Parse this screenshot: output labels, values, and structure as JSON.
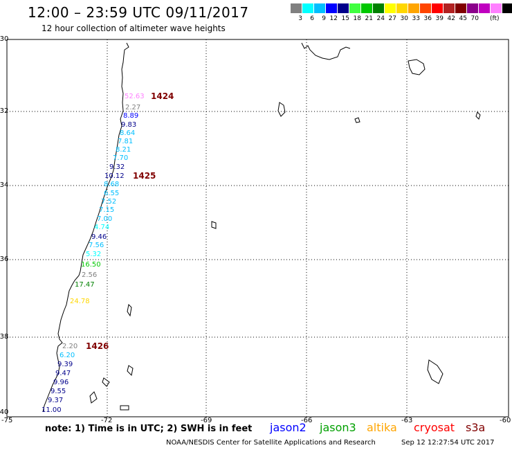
{
  "header": {
    "title": "12:00 – 23:59 UTC 09/11/2017",
    "subtitle": "12 hour collection of altimeter wave heights"
  },
  "legend": {
    "colors": [
      "#808080",
      "#00ffff",
      "#00bfff",
      "#0000ff",
      "#00008b",
      "#40ff40",
      "#00c800",
      "#008000",
      "#ffff00",
      "#ffd700",
      "#ffa500",
      "#ff4500",
      "#ff0000",
      "#b22222",
      "#800000",
      "#8b008b",
      "#c000c0",
      "#ff80ff",
      "#000000"
    ],
    "labels": [
      "3",
      "6",
      "9",
      "12",
      "15",
      "18",
      "21",
      "24",
      "27",
      "30",
      "33",
      "36",
      "39",
      "42",
      "45",
      "70"
    ],
    "unit": "(ft)"
  },
  "axes": {
    "lat_labels": [
      "-30",
      "-32",
      "-34",
      "-36",
      "-38",
      "-40"
    ],
    "lon_labels": [
      "-75",
      "-72",
      "-69",
      "-66",
      "-63",
      "-60"
    ]
  },
  "passes": [
    "1424",
    "1425",
    "1426"
  ],
  "wave_heights": [
    {
      "v": "52.63",
      "c": "#ff80ff"
    },
    {
      "v": "2.27",
      "c": "#808080"
    },
    {
      "v": "8.89",
      "c": "#0000ff"
    },
    {
      "v": "9.83",
      "c": "#00008b"
    },
    {
      "v": "8.64",
      "c": "#00bfff"
    },
    {
      "v": "7.81",
      "c": "#00bfff"
    },
    {
      "v": "8.21",
      "c": "#00bfff"
    },
    {
      "v": "7.70",
      "c": "#00bfff"
    },
    {
      "v": "9.32",
      "c": "#00008b"
    },
    {
      "v": "10.12",
      "c": "#00008b"
    },
    {
      "v": "8.68",
      "c": "#00bfff"
    },
    {
      "v": "6.55",
      "c": "#00bfff"
    },
    {
      "v": "7.52",
      "c": "#00bfff"
    },
    {
      "v": "7.15",
      "c": "#00bfff"
    },
    {
      "v": "7.00",
      "c": "#00bfff"
    },
    {
      "v": "4.74",
      "c": "#00ffff"
    },
    {
      "v": "9.46",
      "c": "#00008b"
    },
    {
      "v": "7.56",
      "c": "#00bfff"
    },
    {
      "v": "5.32",
      "c": "#00ffff"
    },
    {
      "v": "16.50",
      "c": "#00c800"
    },
    {
      "v": "2.56",
      "c": "#808080"
    },
    {
      "v": "17.47",
      "c": "#008000"
    },
    {
      "v": "24.78",
      "c": "#ffd700"
    },
    {
      "v": "2.20",
      "c": "#808080"
    },
    {
      "v": "6.20",
      "c": "#00bfff"
    },
    {
      "v": "9.39",
      "c": "#00008b"
    },
    {
      "v": "9.47",
      "c": "#00008b"
    },
    {
      "v": "9.96",
      "c": "#00008b"
    },
    {
      "v": "9.55",
      "c": "#00008b"
    },
    {
      "v": "9.37",
      "c": "#00008b"
    },
    {
      "v": "11.00",
      "c": "#00008b"
    }
  ],
  "footer": {
    "note": "note:  1) Time is in UTC;  2) SWH is in feet",
    "satellites": [
      {
        "name": "jason2",
        "color": "#0000ff"
      },
      {
        "name": "jason3",
        "color": "#00a000"
      },
      {
        "name": "altika",
        "color": "#ffa500"
      },
      {
        "name": "cryosat",
        "color": "#ff0000"
      },
      {
        "name": "s3a",
        "color": "#800000"
      }
    ],
    "credit": "NOAA/NESDIS Center for Satellite Applications and Research",
    "timestamp": "Sep 12 12:27:54 UTC 2017"
  }
}
